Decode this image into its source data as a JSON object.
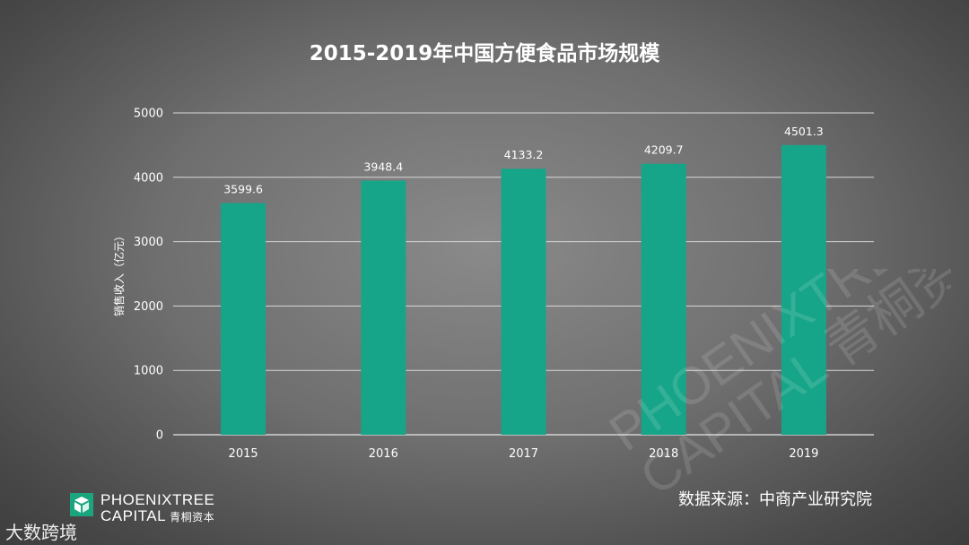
{
  "chart_data": {
    "type": "bar",
    "title": "2015-2019年中国方便食品市场规模",
    "categories": [
      "2015",
      "2016",
      "2017",
      "2018",
      "2019"
    ],
    "values": [
      3599.6,
      3948.4,
      4133.2,
      4209.7,
      4501.3
    ],
    "data_labels": [
      "3599.6",
      "3948.4",
      "4133.2",
      "4209.7",
      "4501.3"
    ],
    "ylabel": "销售收入（亿元）",
    "xlabel": "",
    "ylim": [
      0,
      5000
    ],
    "yticks": [
      0,
      1000,
      2000,
      3000,
      4000,
      5000
    ],
    "grid": true,
    "bar_color": "#17a589"
  },
  "source": "数据来源：中商产业研究院",
  "logo": {
    "line1": "PHOENIXTREE",
    "line2": "CAPITAL",
    "line2_cn": "青桐资本"
  },
  "corner_brand": "大数跨境",
  "watermark_text": [
    "PHOENIXTREE",
    "CAPITAL 青桐资本"
  ]
}
